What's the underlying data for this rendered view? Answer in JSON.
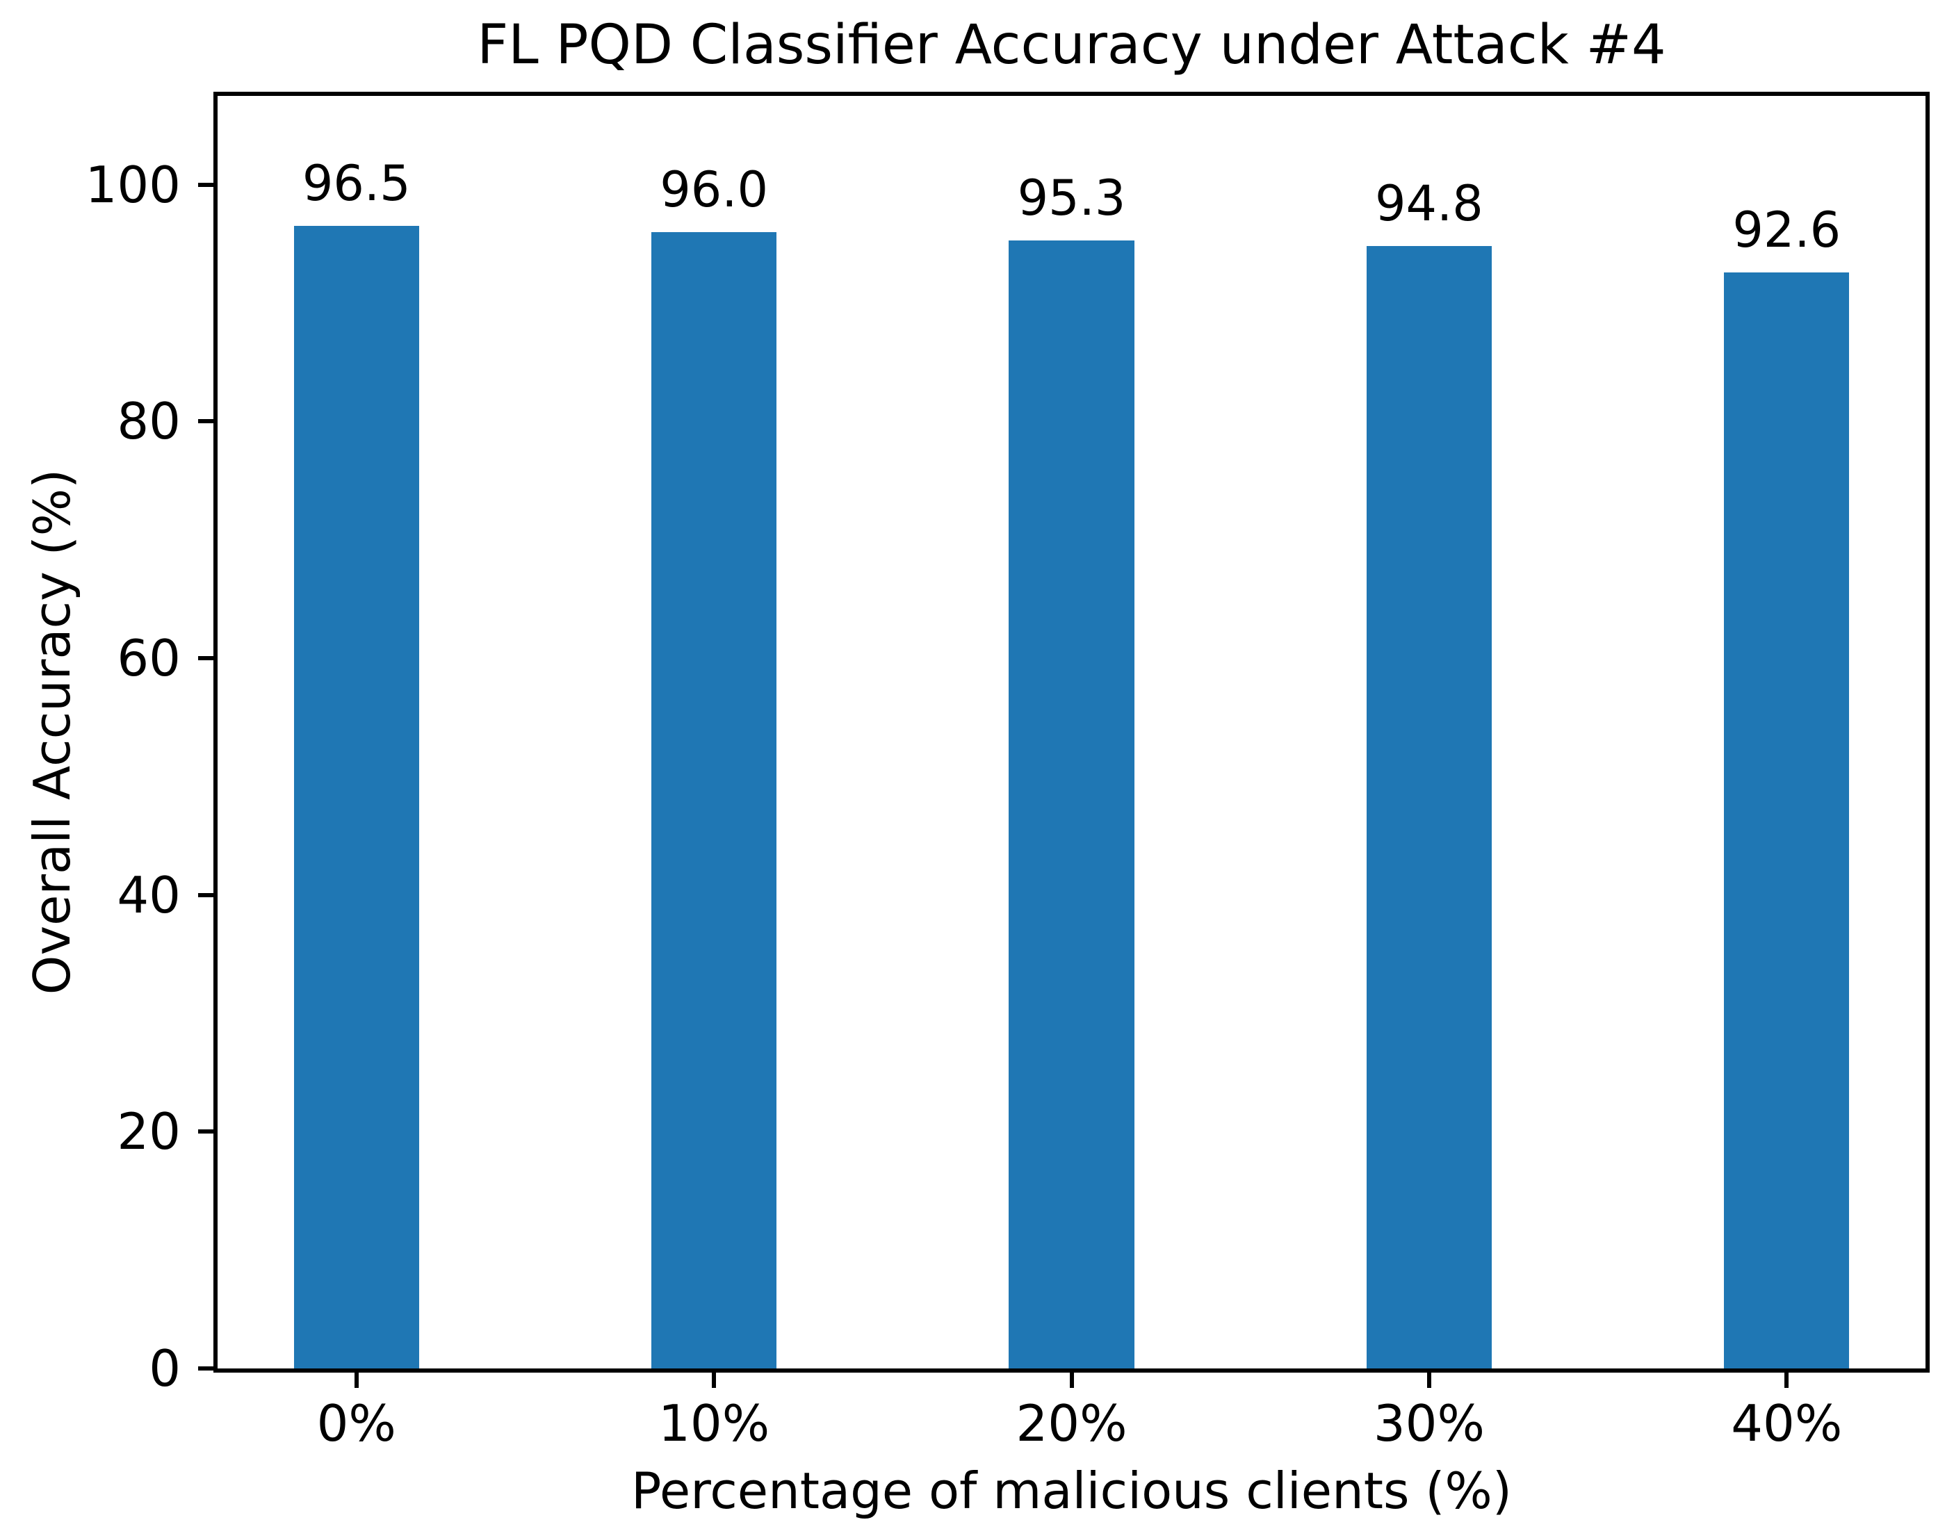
{
  "chart_data": {
    "type": "bar",
    "title": "FL PQD Classifier Accuracy under Attack #4",
    "xlabel": "Percentage of malicious clients (%)",
    "ylabel": "Overall Accuracy (%)",
    "categories": [
      "0%",
      "10%",
      "20%",
      "30%",
      "40%"
    ],
    "values": [
      96.5,
      96.0,
      95.3,
      94.8,
      92.6
    ],
    "value_labels": [
      "96.5",
      "96.0",
      "95.3",
      "94.8",
      "92.6"
    ],
    "yticks": [
      0,
      20,
      40,
      60,
      80,
      100
    ],
    "ytick_labels": [
      "0",
      "20",
      "40",
      "60",
      "80",
      "100"
    ],
    "ylim": [
      0,
      107.5
    ],
    "xlim": [
      -0.4,
      4.4
    ],
    "bar_width_units": 0.35,
    "bar_color": "#1f77b4",
    "axis_color": "#000000",
    "background_color": "#ffffff",
    "grid": false,
    "legend": null
  }
}
